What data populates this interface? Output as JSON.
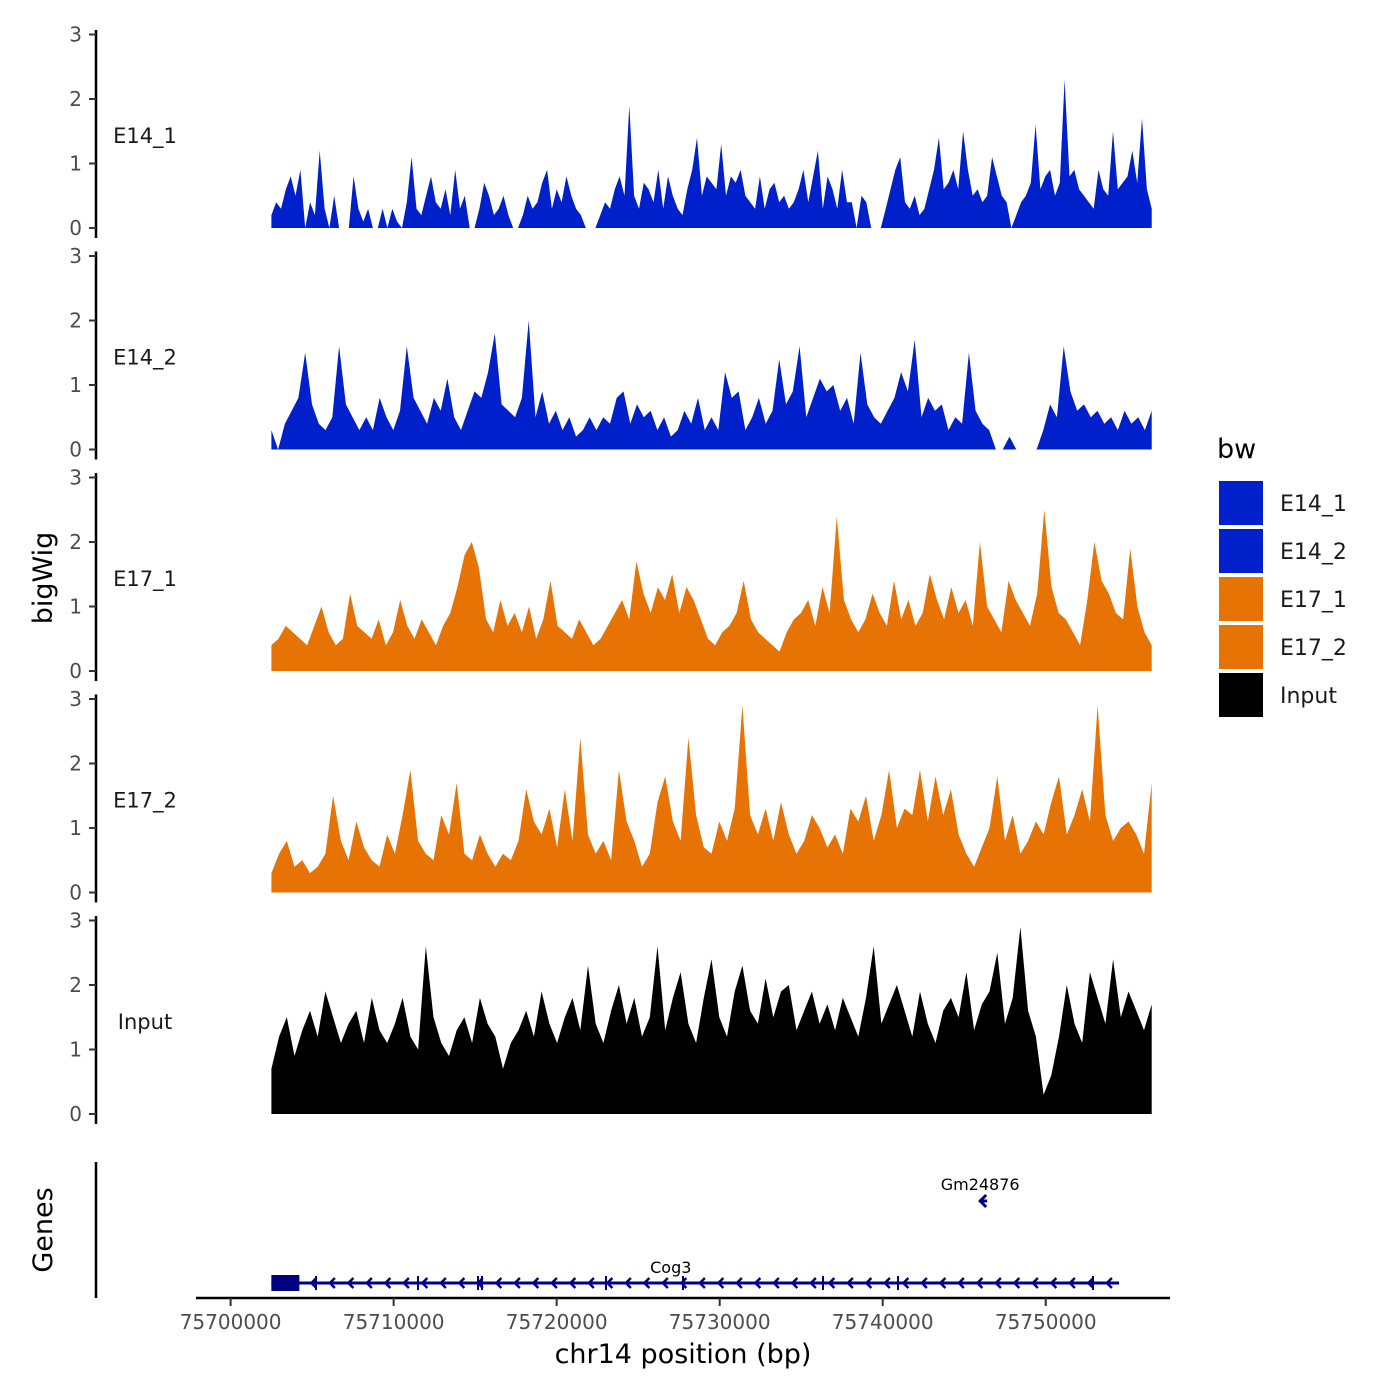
{
  "chart_data": {
    "type": "area",
    "ylabel": "bigWig",
    "xlabel": "chr14 position (bp)",
    "genes_label": "Genes",
    "xlim": [
      75698000,
      75757500
    ],
    "data_start": 75702500,
    "data_end": 75756500,
    "ylim": [
      0,
      3
    ],
    "y_ticks": [
      "0",
      "1",
      "2",
      "3"
    ],
    "x_ticks": [
      75700000,
      75710000,
      75720000,
      75730000,
      75740000,
      75750000
    ],
    "x_tick_labels": [
      "75700000",
      "75710000",
      "75720000",
      "75730000",
      "75740000",
      "75750000"
    ],
    "colors": {
      "E14": "#0020CC",
      "E17": "#E87305",
      "Input": "#000000",
      "gene": "#000080"
    },
    "legend": {
      "title": "bw",
      "items": [
        {
          "label": "E14_1",
          "color": "#0020CC"
        },
        {
          "label": "E14_2",
          "color": "#0020CC"
        },
        {
          "label": "E17_1",
          "color": "#E87305"
        },
        {
          "label": "E17_2",
          "color": "#E87305"
        },
        {
          "label": "Input",
          "color": "#000000"
        }
      ]
    },
    "series": [
      {
        "name": "E14_1",
        "color": "#0020CC",
        "values": [
          0.2,
          0.4,
          0.3,
          0.6,
          0.8,
          0.5,
          0.9,
          0,
          0.4,
          0.2,
          1.2,
          0.3,
          0,
          0.5,
          0,
          0,
          0,
          0.8,
          0.3,
          0.1,
          0.3,
          0,
          0,
          0.3,
          0,
          0.3,
          0.1,
          0,
          0.4,
          1.1,
          0.3,
          0.2,
          0.5,
          0.8,
          0.4,
          0.3,
          0.6,
          0.2,
          0.9,
          0.3,
          0.5,
          0,
          0,
          0.3,
          0.7,
          0.5,
          0.2,
          0.3,
          0.5,
          0.2,
          0,
          0,
          0.2,
          0.5,
          0.3,
          0.4,
          0.7,
          0.9,
          0.3,
          0.6,
          0.4,
          0.8,
          0.5,
          0.3,
          0.2,
          0,
          0,
          0,
          0.2,
          0.4,
          0.3,
          0.6,
          0.8,
          0.5,
          1.9,
          0.5,
          0.3,
          0.7,
          0.6,
          0.4,
          0.9,
          0.3,
          0.8,
          0.5,
          0.3,
          0.2,
          0.6,
          0.9,
          1.4,
          0.5,
          0.8,
          0.7,
          0.6,
          1.3,
          0.5,
          0.8,
          0.7,
          0.9,
          0.5,
          0.4,
          0.3,
          0.8,
          0.3,
          0.6,
          0.7,
          0.4,
          0.5,
          0.3,
          0.4,
          0.6,
          0.9,
          0.4,
          0.8,
          1.2,
          0.3,
          0.8,
          0.6,
          0.3,
          0.9,
          0.4,
          0.4,
          0,
          0.5,
          0.4,
          0,
          0,
          0,
          0.3,
          0.6,
          0.9,
          1.1,
          0.4,
          0.3,
          0.5,
          0.2,
          0.3,
          0.6,
          0.9,
          1.4,
          0.6,
          0.7,
          0.9,
          0.6,
          1.5,
          0.9,
          0.5,
          0.6,
          0.4,
          0.5,
          1.1,
          0.8,
          0.5,
          0.4,
          0,
          0.2,
          0.4,
          0.5,
          0.7,
          1.6,
          0.6,
          0.8,
          0.9,
          0.5,
          0.7,
          2.3,
          0.8,
          0.9,
          0.6,
          0.5,
          0.4,
          0.3,
          0.9,
          0.6,
          0.5,
          1.5,
          0.6,
          0.7,
          0.8,
          1.2,
          0.7,
          1.7,
          0.6,
          0.3
        ]
      },
      {
        "name": "E14_2",
        "color": "#0020CC",
        "values": [
          0.3,
          0,
          0.4,
          0.6,
          0.8,
          1.5,
          0.7,
          0.4,
          0.3,
          0.5,
          1.6,
          0.7,
          0.5,
          0.3,
          0.5,
          0.3,
          0.8,
          0.5,
          0.3,
          0.6,
          1.6,
          0.8,
          0.6,
          0.4,
          0.8,
          0.6,
          1.1,
          0.5,
          0.3,
          0.6,
          0.9,
          0.8,
          1.2,
          1.8,
          0.7,
          0.6,
          0.5,
          0.8,
          2.0,
          0.5,
          0.9,
          0.4,
          0.6,
          0.3,
          0.5,
          0.2,
          0.3,
          0.5,
          0.3,
          0.5,
          0.4,
          0.8,
          0.9,
          0.4,
          0.7,
          0.5,
          0.6,
          0.3,
          0.5,
          0.2,
          0.3,
          0.6,
          0.4,
          0.8,
          0.3,
          0.5,
          0.3,
          1.2,
          0.8,
          0.9,
          0.3,
          0.5,
          0.8,
          0.4,
          0.6,
          1.4,
          0.7,
          0.9,
          1.6,
          0.5,
          0.8,
          1.1,
          0.9,
          1.0,
          0.6,
          0.8,
          0.4,
          1.5,
          0.7,
          0.5,
          0.4,
          0.6,
          0.8,
          1.2,
          0.9,
          1.7,
          0.5,
          0.8,
          0.6,
          0.7,
          0.3,
          0.5,
          0.4,
          1.5,
          0.6,
          0.4,
          0.3,
          0,
          0,
          0.2,
          0,
          0,
          0,
          0,
          0.3,
          0.7,
          0.5,
          1.6,
          0.9,
          0.6,
          0.7,
          0.5,
          0.6,
          0.4,
          0.5,
          0.3,
          0.6,
          0.4,
          0.5,
          0.3,
          0.6
        ]
      },
      {
        "name": "E17_1",
        "color": "#E87305",
        "values": [
          0.4,
          0.5,
          0.7,
          0.6,
          0.5,
          0.4,
          0.7,
          1.0,
          0.6,
          0.4,
          0.5,
          1.2,
          0.7,
          0.6,
          0.5,
          0.8,
          0.4,
          0.6,
          1.1,
          0.7,
          0.5,
          0.8,
          0.6,
          0.4,
          0.7,
          0.9,
          1.3,
          1.8,
          2.0,
          1.6,
          0.8,
          0.6,
          1.1,
          0.7,
          0.9,
          0.6,
          1.0,
          0.5,
          0.8,
          1.4,
          0.7,
          0.6,
          0.5,
          0.8,
          0.6,
          0.4,
          0.5,
          0.7,
          0.9,
          1.1,
          0.8,
          1.7,
          1.2,
          0.9,
          1.3,
          1.1,
          1.5,
          0.9,
          1.3,
          1.1,
          0.8,
          0.5,
          0.4,
          0.6,
          0.7,
          0.9,
          1.4,
          0.8,
          0.6,
          0.5,
          0.4,
          0.3,
          0.6,
          0.8,
          0.9,
          1.1,
          0.7,
          1.3,
          0.9,
          2.4,
          1.1,
          0.8,
          0.6,
          0.8,
          1.2,
          0.9,
          0.7,
          1.4,
          0.8,
          1.1,
          0.7,
          0.9,
          1.5,
          1.1,
          0.8,
          1.3,
          0.9,
          1.1,
          0.7,
          2.0,
          1.0,
          0.8,
          0.6,
          1.4,
          1.1,
          0.9,
          0.7,
          1.2,
          2.5,
          1.3,
          0.9,
          0.8,
          0.6,
          0.4,
          1.1,
          2.0,
          1.4,
          1.2,
          0.9,
          0.8,
          1.9,
          1.0,
          0.6,
          0.4
        ]
      },
      {
        "name": "E17_2",
        "color": "#E87305",
        "values": [
          0.3,
          0.6,
          0.8,
          0.4,
          0.5,
          0.3,
          0.4,
          0.6,
          1.5,
          0.8,
          0.5,
          1.1,
          0.7,
          0.5,
          0.4,
          0.9,
          0.6,
          1.2,
          1.9,
          0.8,
          0.6,
          0.5,
          1.2,
          0.9,
          1.7,
          0.6,
          0.5,
          0.9,
          0.6,
          0.4,
          0.6,
          0.5,
          0.8,
          1.6,
          1.1,
          0.9,
          1.3,
          0.7,
          1.6,
          0.8,
          2.4,
          0.9,
          0.6,
          0.8,
          0.5,
          1.9,
          1.1,
          0.8,
          0.4,
          0.6,
          1.4,
          1.8,
          1.1,
          0.8,
          2.4,
          1.2,
          0.7,
          0.6,
          1.1,
          0.8,
          1.3,
          2.9,
          1.2,
          0.9,
          1.3,
          0.8,
          1.4,
          0.9,
          0.6,
          0.8,
          1.2,
          1.0,
          0.7,
          0.9,
          0.6,
          1.3,
          1.1,
          1.5,
          0.8,
          1.2,
          1.9,
          1.0,
          1.3,
          1.2,
          1.9,
          1.1,
          1.8,
          1.2,
          1.6,
          0.9,
          0.6,
          0.4,
          0.7,
          1.0,
          1.8,
          0.8,
          1.2,
          0.6,
          0.8,
          1.1,
          0.9,
          1.4,
          1.8,
          0.9,
          1.2,
          1.6,
          1.1,
          2.9,
          1.2,
          0.8,
          1.0,
          1.1,
          0.9,
          0.6,
          1.7
        ]
      },
      {
        "name": "Input",
        "color": "#000000",
        "values": [
          0.7,
          1.2,
          1.5,
          0.9,
          1.3,
          1.6,
          1.2,
          1.9,
          1.5,
          1.1,
          1.4,
          1.6,
          1.1,
          1.8,
          1.3,
          1.1,
          1.4,
          1.8,
          1.2,
          1.0,
          2.6,
          1.5,
          1.1,
          0.9,
          1.3,
          1.5,
          1.1,
          1.8,
          1.4,
          1.2,
          0.7,
          1.1,
          1.3,
          1.6,
          1.2,
          1.9,
          1.4,
          1.1,
          1.5,
          1.8,
          1.3,
          2.3,
          1.4,
          1.1,
          1.6,
          2.0,
          1.4,
          1.8,
          1.2,
          1.5,
          2.6,
          1.3,
          1.8,
          2.2,
          1.4,
          1.1,
          1.8,
          2.4,
          1.5,
          1.2,
          1.9,
          2.3,
          1.6,
          1.4,
          2.1,
          1.5,
          1.9,
          2.0,
          1.3,
          1.6,
          1.9,
          1.4,
          1.7,
          1.3,
          1.8,
          1.5,
          1.2,
          1.8,
          2.6,
          1.4,
          1.7,
          2.0,
          1.6,
          1.2,
          1.9,
          1.4,
          1.1,
          1.6,
          1.8,
          1.5,
          2.2,
          1.3,
          1.7,
          1.9,
          2.5,
          1.4,
          1.8,
          2.9,
          1.6,
          1.2,
          0.3,
          0.6,
          1.2,
          2.0,
          1.4,
          1.1,
          2.2,
          1.8,
          1.4,
          2.4,
          1.5,
          1.9,
          1.6,
          1.3,
          1.7
        ]
      }
    ],
    "genes": [
      {
        "name": "Cog3",
        "start": 75702500,
        "end": 75754500,
        "strand": "-",
        "label_pos": 75727000
      },
      {
        "name": "Gm24876",
        "start": 75745900,
        "end": 75746400,
        "strand": "-",
        "label_pos": 75746100
      }
    ]
  }
}
